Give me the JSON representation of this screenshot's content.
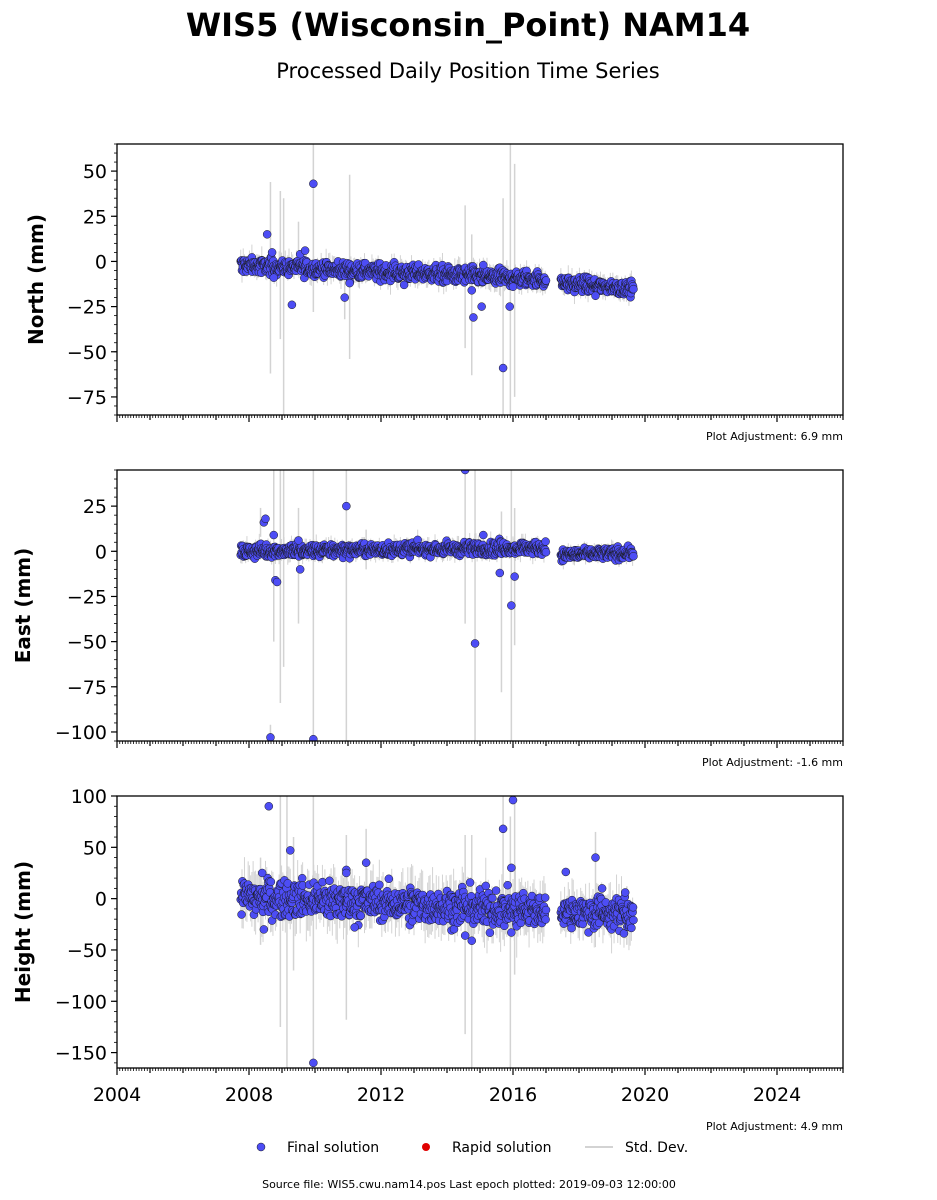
{
  "title": "WIS5 (Wisconsin_Point) NAM14",
  "subtitle": "Processed Daily Position Time Series",
  "colors": {
    "final": "#4d4df5",
    "rapid": "#e00000",
    "stddev": "#d3d3d3",
    "edge": "#1a1a1a"
  },
  "legend": {
    "final": "Final solution",
    "rapid": "Rapid solution",
    "stddev": "Std. Dev."
  },
  "footer": "Source file: WIS5.cwu.nam14.pos  Last epoch plotted: 2019-09-03 12:00:00",
  "chart_data": {
    "type": "scatter",
    "x_range": [
      2004,
      2026
    ],
    "x_ticks": [
      "2004",
      "2008",
      "2012",
      "2016",
      "2020",
      "2024"
    ],
    "panels": [
      {
        "ylabel": "North (mm)",
        "ylim": [
          -85,
          65
        ],
        "yticks": [
          50,
          25,
          0,
          -25,
          -50,
          -75
        ],
        "ytick_labels": [
          "50",
          "25",
          "0",
          "−25",
          "−50",
          "−75"
        ],
        "adjustment": "Plot Adjustment: 6.9 mm",
        "segments": [
          {
            "x0": 2007.75,
            "x1": 2017.0,
            "y0": -2,
            "y1": -10,
            "noise": 2.2
          },
          {
            "x0": 2017.45,
            "x1": 2019.65,
            "y0": -12,
            "y1": -15,
            "noise": 2.0
          }
        ],
        "outliers": [
          [
            2008.55,
            15
          ],
          [
            2008.7,
            5
          ],
          [
            2008.75,
            -9
          ],
          [
            2009.3,
            -24
          ],
          [
            2009.55,
            4
          ],
          [
            2009.7,
            6
          ],
          [
            2009.95,
            43
          ],
          [
            2010.9,
            -20
          ],
          [
            2011.05,
            -12
          ],
          [
            2012.7,
            -13
          ],
          [
            2014.75,
            -16
          ],
          [
            2014.8,
            -31
          ],
          [
            2015.05,
            -25
          ],
          [
            2015.1,
            -2
          ],
          [
            2015.7,
            -59
          ],
          [
            2015.9,
            -25
          ],
          [
            2016.0,
            -14
          ],
          [
            2018.5,
            -19
          ]
        ],
        "errorbars": [
          [
            2008.65,
            -62,
            44
          ],
          [
            2008.95,
            -43,
            39
          ],
          [
            2009.05,
            -85,
            35
          ],
          [
            2009.5,
            -8,
            22
          ],
          [
            2009.95,
            -28,
            65
          ],
          [
            2010.9,
            -32,
            -5
          ],
          [
            2011.05,
            -54,
            48
          ],
          [
            2014.55,
            -48,
            31
          ],
          [
            2014.75,
            -63,
            15
          ],
          [
            2015.7,
            -85,
            35
          ],
          [
            2015.92,
            -85,
            65
          ],
          [
            2016.05,
            -75,
            54
          ]
        ]
      },
      {
        "ylabel": "East (mm)",
        "ylim": [
          -105,
          45
        ],
        "yticks": [
          25,
          0,
          -25,
          -50,
          -75,
          -100
        ],
        "ytick_labels": [
          "25",
          "0",
          "−25",
          "−50",
          "−75",
          "−100"
        ],
        "adjustment": "Plot Adjustment: -1.6 mm",
        "segments": [
          {
            "x0": 2007.75,
            "x1": 2017.0,
            "y0": 0,
            "y1": 2,
            "noise": 1.8
          },
          {
            "x0": 2017.45,
            "x1": 2019.65,
            "y0": -2,
            "y1": -1,
            "noise": 1.5
          }
        ],
        "outliers": [
          [
            2008.45,
            16
          ],
          [
            2008.5,
            18
          ],
          [
            2008.75,
            9
          ],
          [
            2008.8,
            -16
          ],
          [
            2008.85,
            -17
          ],
          [
            2009.5,
            6
          ],
          [
            2009.55,
            -10
          ],
          [
            2010.95,
            25
          ],
          [
            2014.55,
            45
          ],
          [
            2014.85,
            -51
          ],
          [
            2015.1,
            9
          ],
          [
            2015.6,
            -12
          ],
          [
            2015.95,
            -30
          ],
          [
            2016.05,
            -14
          ],
          [
            2008.65,
            -103
          ],
          [
            2009.95,
            -104
          ]
        ],
        "errorbars": [
          [
            2008.35,
            8,
            24
          ],
          [
            2008.65,
            -105,
            -96
          ],
          [
            2008.75,
            -50,
            45
          ],
          [
            2008.95,
            -84,
            45
          ],
          [
            2009.05,
            -64,
            45
          ],
          [
            2009.5,
            -40,
            24
          ],
          [
            2009.95,
            -105,
            45
          ],
          [
            2010.95,
            -105,
            45
          ],
          [
            2011.55,
            -10,
            12
          ],
          [
            2014.55,
            -40,
            45
          ],
          [
            2014.85,
            -105,
            45
          ],
          [
            2015.65,
            -78,
            22
          ],
          [
            2015.95,
            -105,
            45
          ],
          [
            2016.05,
            -52,
            24
          ]
        ]
      },
      {
        "ylabel": "Height (mm)",
        "ylim": [
          -165,
          100
        ],
        "yticks": [
          100,
          50,
          0,
          -50,
          -100,
          -150
        ],
        "ytick_labels": [
          "100",
          "50",
          "0",
          "−50",
          "−100",
          "−150"
        ],
        "adjustment": "Plot Adjustment: 4.9 mm",
        "segments": [
          {
            "x0": 2007.75,
            "x1": 2017.0,
            "y0": 2,
            "y1": -12,
            "noise": 9.0
          },
          {
            "x0": 2017.45,
            "x1": 2019.65,
            "y0": -12,
            "y1": -16,
            "noise": 8.0
          }
        ],
        "outliers": [
          [
            2008.4,
            25
          ],
          [
            2008.45,
            -30
          ],
          [
            2008.6,
            90
          ],
          [
            2009.25,
            47
          ],
          [
            2009.95,
            -160
          ],
          [
            2010.95,
            28
          ],
          [
            2010.95,
            25
          ],
          [
            2011.2,
            -28
          ],
          [
            2011.55,
            35
          ],
          [
            2014.55,
            -36
          ],
          [
            2014.75,
            -41
          ],
          [
            2015.7,
            68
          ],
          [
            2015.95,
            30
          ],
          [
            2016.0,
            96
          ],
          [
            2015.95,
            -33
          ],
          [
            2017.6,
            26
          ],
          [
            2018.5,
            40
          ],
          [
            2018.7,
            10
          ],
          [
            2019.4,
            6
          ]
        ],
        "errorbars": [
          [
            2008.35,
            -45,
            40
          ],
          [
            2008.95,
            -125,
            100
          ],
          [
            2009.15,
            -165,
            100
          ],
          [
            2009.35,
            -70,
            60
          ],
          [
            2009.95,
            -165,
            100
          ],
          [
            2010.95,
            -118,
            62
          ],
          [
            2011.55,
            -28,
            68
          ],
          [
            2014.55,
            -132,
            62
          ],
          [
            2014.75,
            -165,
            62
          ],
          [
            2015.7,
            -40,
            100
          ],
          [
            2015.92,
            -165,
            80
          ],
          [
            2016.05,
            -74,
            100
          ],
          [
            2018.5,
            -22,
            65
          ],
          [
            2019.45,
            -45,
            12
          ]
        ]
      }
    ]
  }
}
